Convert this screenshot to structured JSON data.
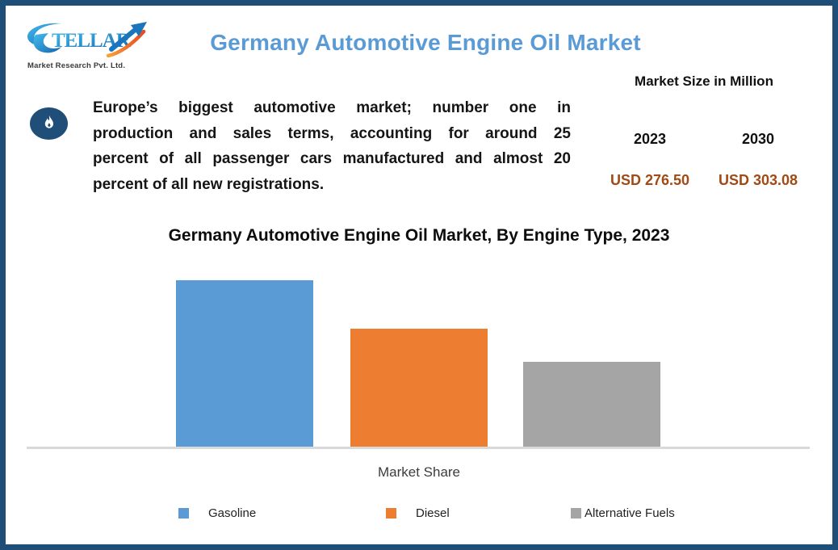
{
  "header": {
    "logo": {
      "brand_s": "S",
      "brand_rest": "TELLAR",
      "tagline": "Market Research Pvt. Ltd."
    },
    "title": "Germany Automotive Engine Oil Market"
  },
  "summary": {
    "lines": [
      "Europe’s biggest automotive market; number one in",
      "production and sales terms, accounting for around 25",
      "percent of all passenger cars manufactured and almost 20",
      "percent of all new registrations."
    ]
  },
  "market_size": {
    "heading": "Market Size in Million",
    "columns": [
      {
        "year": "2023",
        "value": "USD 276.50"
      },
      {
        "year": "2030",
        "value": "USD 303.08"
      }
    ],
    "value_color": "#A04A15"
  },
  "chart_data": {
    "type": "bar",
    "title": "Germany Automotive Engine Oil Market, By Engine Type, 2023",
    "xlabel": "Market Share",
    "categories": [
      "Gasoline",
      "Diesel",
      "Alternative Fuels"
    ],
    "values": [
      45,
      32,
      23
    ],
    "values_estimated": true,
    "colors": [
      "#5B9BD5",
      "#ED7D31",
      "#A5A5A5"
    ],
    "ylim": [
      0,
      50
    ],
    "grid": false,
    "legend_position": "bottom",
    "axis_line_color": "#D9D9D9"
  },
  "theme": {
    "border_navy": "#1F4E79",
    "title_blue": "#5B9BD5",
    "value_brown": "#A04A15"
  }
}
